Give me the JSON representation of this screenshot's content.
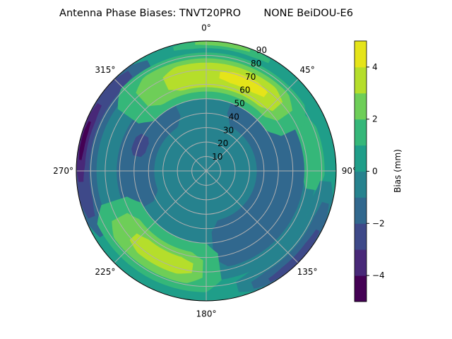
{
  "chart_data": {
    "type": "heatmap",
    "subtype": "polar-contourf",
    "title": "Antenna Phase Biases: TNVT20PRO       NONE BeiDOU-E6",
    "angular_ticks": [
      "0°",
      "45°",
      "90°",
      "135°",
      "180°",
      "225°",
      "270°",
      "315°"
    ],
    "angular_tick_values": [
      0,
      45,
      90,
      135,
      180,
      225,
      270,
      315
    ],
    "radial_ticks": [
      "10",
      "20",
      "30",
      "40",
      "50",
      "60",
      "70",
      "80",
      "90"
    ],
    "radial_tick_values": [
      10,
      20,
      30,
      40,
      50,
      60,
      70,
      80,
      90
    ],
    "radial_range": [
      0,
      90
    ],
    "angular_direction": "clockwise",
    "angular_zero": "top",
    "grid": true,
    "colorbar": {
      "label": "Bias (mm)",
      "range": [
        -5,
        5
      ],
      "levels": [
        -5,
        -4,
        -3,
        -2,
        -1,
        0,
        1,
        2,
        3,
        4,
        5
      ],
      "tick_labels": [
        "−4",
        "−2",
        "0",
        "2",
        "4"
      ],
      "tick_values": [
        -4,
        -2,
        0,
        2,
        4
      ],
      "colormap": "viridis",
      "band_colors": [
        "#440154",
        "#482878",
        "#3e4989",
        "#31688e",
        "#26828e",
        "#1f9e89",
        "#35b779",
        "#6ece58",
        "#b5de2b",
        "#e5e419"
      ]
    },
    "regions": [
      {
        "band_low": 0,
        "az": [
          0,
          360
        ],
        "zen": [
          0,
          90
        ]
      },
      {
        "band_low": -1,
        "az": [
          0,
          360
        ],
        "zen": [
          0,
          76
        ]
      },
      {
        "band_low": 1,
        "az": [
          60,
          100
        ],
        "zen": [
          66,
          82
        ]
      },
      {
        "band_low": -2,
        "az": [
          20,
          175
        ],
        "zen": [
          35,
          68
        ]
      },
      {
        "band_low": -2,
        "az": [
          240,
          335
        ],
        "zen": [
          36,
          62
        ]
      },
      {
        "band_low": -3,
        "az": [
          282,
          300
        ],
        "zen": [
          44,
          54
        ]
      },
      {
        "band_low": -1,
        "az": [
          235,
          340
        ],
        "zen": [
          70,
          82
        ]
      },
      {
        "band_low": -2,
        "az": [
          238,
          332
        ],
        "zen": [
          76,
          90
        ]
      },
      {
        "band_low": -3,
        "az": [
          248,
          322
        ],
        "zen": [
          81,
          90
        ]
      },
      {
        "band_low": -4,
        "az": [
          265,
          302
        ],
        "zen": [
          84,
          90
        ]
      },
      {
        "band_low": -5,
        "az": [
          275,
          293
        ],
        "zen": [
          86,
          89
        ]
      },
      {
        "band_low": -1,
        "az": [
          95,
          165
        ],
        "zen": [
          76,
          90
        ]
      },
      {
        "band_low": -2,
        "az": [
          105,
          158
        ],
        "zen": [
          81,
          90
        ]
      },
      {
        "band_low": -3,
        "az": [
          118,
          150
        ],
        "zen": [
          85,
          90
        ]
      },
      {
        "band_low": 1,
        "az": [
          305,
          65
        ],
        "zen": [
          50,
          82
        ]
      },
      {
        "band_low": 2,
        "az": [
          318,
          55
        ],
        "zen": [
          55,
          78
        ]
      },
      {
        "band_low": 3,
        "az": [
          335,
          48
        ],
        "zen": [
          58,
          75
        ]
      },
      {
        "band_low": 4,
        "az": [
          8,
          38
        ],
        "zen": [
          63,
          71
        ]
      },
      {
        "band_low": 1,
        "az": [
          345,
          30
        ],
        "zen": [
          85,
          90
        ]
      },
      {
        "band_low": 2,
        "az": [
          355,
          20
        ],
        "zen": [
          87,
          90
        ]
      },
      {
        "band_low": 1,
        "az": [
          172,
          252
        ],
        "zen": [
          50,
          84
        ]
      },
      {
        "band_low": 2,
        "az": [
          182,
          242
        ],
        "zen": [
          57,
          79
        ]
      },
      {
        "band_low": 3,
        "az": [
          188,
          228
        ],
        "zen": [
          62,
          74
        ]
      }
    ]
  }
}
